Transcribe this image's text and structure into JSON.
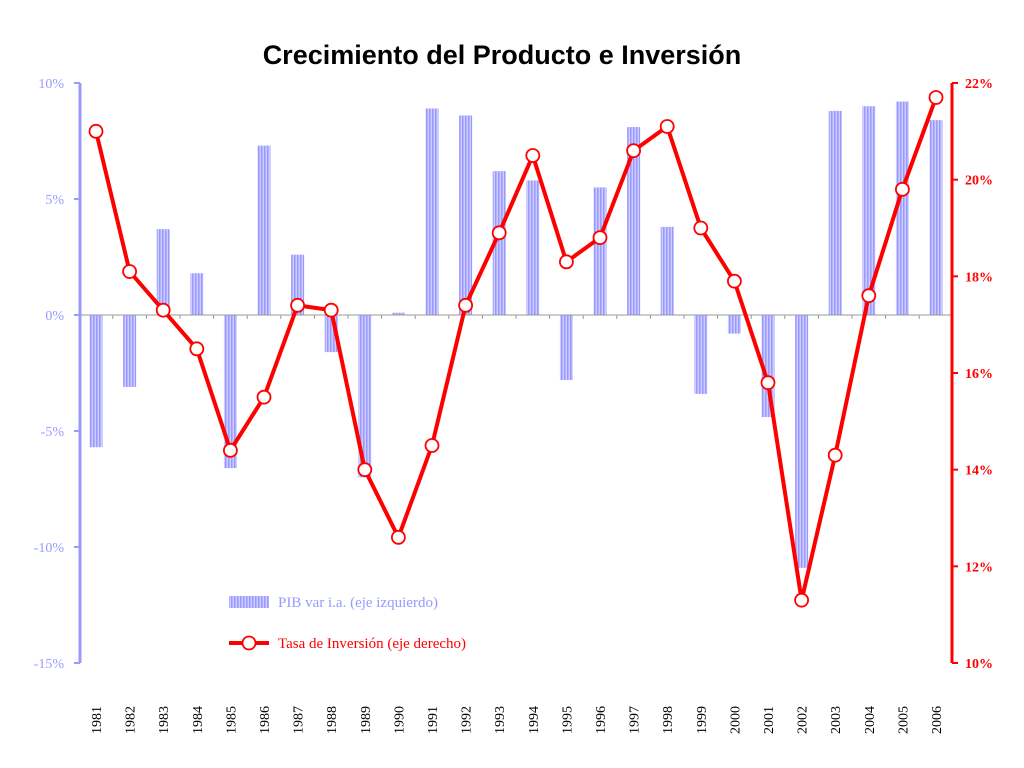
{
  "chart_data": {
    "type": "bar+line",
    "title": "Crecimiento del Producto e Inversión",
    "categories": [
      "1981",
      "1982",
      "1983",
      "1984",
      "1985",
      "1986",
      "1987",
      "1988",
      "1989",
      "1990",
      "1991",
      "1992",
      "1993",
      "1994",
      "1995",
      "1996",
      "1997",
      "1998",
      "1999",
      "2000",
      "2001",
      "2002",
      "2003",
      "2004",
      "2005",
      "2006"
    ],
    "series": [
      {
        "name": "PIB var i.a. (eje izquierdo)",
        "type": "bar",
        "axis": "left",
        "values": [
          -5.7,
          -3.1,
          3.7,
          1.8,
          -6.6,
          7.3,
          2.6,
          -1.6,
          -7.0,
          0.1,
          8.9,
          8.6,
          6.2,
          5.8,
          -2.8,
          5.5,
          8.1,
          3.8,
          -3.4,
          -0.8,
          -4.4,
          -10.9,
          8.8,
          9.0,
          9.2,
          8.4
        ]
      },
      {
        "name": "Tasa de Inversión (eje derecho)",
        "type": "line",
        "axis": "right",
        "values": [
          21.0,
          18.1,
          17.3,
          16.5,
          14.4,
          15.5,
          17.4,
          17.3,
          14.0,
          12.6,
          14.5,
          17.4,
          18.9,
          20.5,
          18.3,
          18.8,
          20.6,
          21.1,
          19.0,
          17.9,
          15.8,
          11.3,
          14.3,
          17.6,
          19.8,
          21.7
        ]
      }
    ],
    "y_left": {
      "ylim": [
        -15,
        10
      ],
      "ticks": [
        10,
        5,
        0,
        -5,
        -10,
        -15
      ],
      "tick_labels": [
        "10%",
        "5%",
        "0%",
        "-5%",
        "-10%",
        "-15%"
      ]
    },
    "y_right": {
      "ylim": [
        10,
        22
      ],
      "ticks": [
        22,
        20,
        18,
        16,
        14,
        12,
        10
      ],
      "tick_labels": [
        "22%",
        "20%",
        "18%",
        "16%",
        "14%",
        "12%",
        "10%"
      ]
    },
    "legend_position": "bottom-center (inside plot)",
    "grid": false,
    "colors": {
      "bar": "#9999ff",
      "bar_stripe": "#ccccff",
      "left_axis": "#9999ff",
      "line": "#ff0000",
      "marker_fill": "#ffffff",
      "title": "#000000",
      "zero_line": "#999999"
    }
  }
}
